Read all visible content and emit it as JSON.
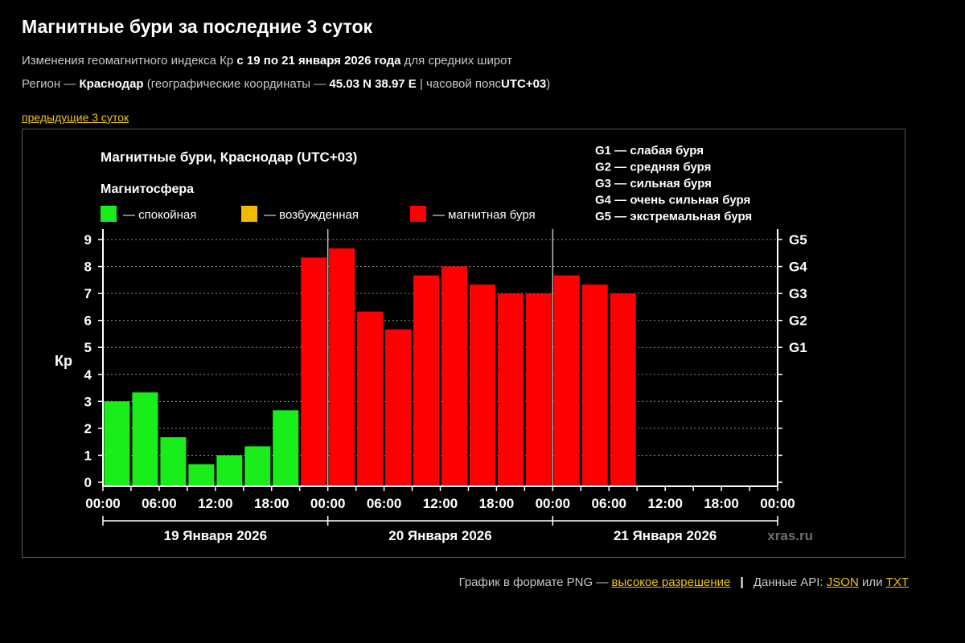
{
  "header": {
    "title": "Магнитные бури за последние 3 суток",
    "line1": {
      "text_before": "Изменения геомагнитного индекса Кр",
      "period": "с 19 по 21 января 2026 года",
      "text_after": "для средних широт"
    },
    "line2": {
      "text_before": "Регион —",
      "region": "Краснодар",
      "text_mid": "(географические координаты —",
      "coords": "45.03 N 38.97 E",
      "text_mid2": "| часовой пояс",
      "tz": "UTC+03",
      "text_after": ")"
    },
    "prev_link": "предыдущие 3 суток"
  },
  "footer": {
    "png_text": "График в формате PNG —",
    "png_link": "высокое разрешение",
    "separator": "|",
    "api_text": "Данные API:",
    "json_link": "JSON",
    "or_text": "или",
    "txt_link": "TXT"
  },
  "colors": {
    "calm": "#1aee1a",
    "excited": "#f5b800",
    "storm": "#ff0000",
    "link": "#f0c419"
  },
  "chart_data": {
    "type": "bar",
    "title": "Магнитные бури, Краснодар (UTC+03)",
    "legend_title": "Магнитосфера",
    "legend": [
      {
        "label": "— спокойная",
        "color": "#1aee1a"
      },
      {
        "label": "— возбужденная",
        "color": "#f5b800"
      },
      {
        "label": "— магнитная буря",
        "color": "#ff0000"
      }
    ],
    "g_legend": [
      "G1 — слабая буря",
      "G2 — средняя буря",
      "G3 — сильная буря",
      "G4 — очень сильная буря",
      "G5 — экстремальная буря"
    ],
    "ylabel": "Кр",
    "ylim": [
      0,
      9
    ],
    "yticks": [
      "0",
      "1",
      "2",
      "3",
      "4",
      "5",
      "6",
      "7",
      "8",
      "9"
    ],
    "g_axis": [
      {
        "label": "G1",
        "value": 5
      },
      {
        "label": "G2",
        "value": 6
      },
      {
        "label": "G3",
        "value": 7
      },
      {
        "label": "G4",
        "value": 8
      },
      {
        "label": "G5",
        "value": 9
      }
    ],
    "x_tick_labels": [
      "00:00",
      "06:00",
      "12:00",
      "18:00",
      "00:00",
      "06:00",
      "12:00",
      "18:00",
      "00:00",
      "06:00",
      "12:00",
      "18:00",
      "00:00"
    ],
    "days": [
      "19 Января 2026",
      "20 Января 2026",
      "21 Января 2026"
    ],
    "slots_per_day": 8,
    "values": [
      3.0,
      3.33,
      1.67,
      0.67,
      1.0,
      1.33,
      2.67,
      8.33,
      8.67,
      6.33,
      5.67,
      7.67,
      8.0,
      7.33,
      7.0,
      7.0,
      7.67,
      7.33,
      7.0
    ],
    "level": [
      "calm",
      "calm",
      "calm",
      "calm",
      "calm",
      "calm",
      "calm",
      "storm",
      "storm",
      "storm",
      "storm",
      "storm",
      "storm",
      "storm",
      "storm",
      "storm",
      "storm",
      "storm",
      "storm"
    ],
    "grid": "dotted-horizontal",
    "watermark": "xras.ru"
  }
}
